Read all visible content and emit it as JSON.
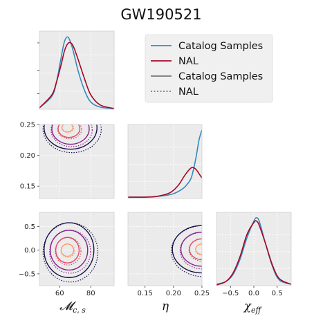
{
  "chart_data": {
    "type": "corner",
    "title": "GW190521",
    "colors": {
      "catalog": "#348abd",
      "nal": "#a60628",
      "legend_gray": "#777777",
      "contour": [
        "#1a0f4a",
        "#8a1f8c",
        "#de4968",
        "#fd9c6a"
      ]
    },
    "legend": {
      "entries": [
        "Catalog Samples",
        "NAL",
        "Catalog Samples",
        "NAL"
      ],
      "styles": [
        "solid-blue",
        "solid-red",
        "solid-gray",
        "dotted-gray"
      ],
      "placement": "top-right"
    },
    "params": [
      {
        "label": "𝓜c,s",
        "label_main": "𝓜",
        "label_sub": "c, s",
        "range": [
          47,
          95
        ],
        "ticks": [
          60,
          80
        ]
      },
      {
        "label": "η",
        "label_main": "η",
        "label_sub": "",
        "range": [
          0.12,
          0.25
        ],
        "ticks": [
          0.15,
          0.2,
          0.25
        ],
        "tick_labels": [
          "0.15",
          "0.20",
          "0.25"
        ]
      },
      {
        "label": "χeff",
        "label_main": "χ",
        "label_sub": "eff",
        "range": [
          -0.8,
          0.8
        ],
        "ticks": [
          -0.5,
          0.0,
          0.5
        ],
        "tick_labels": [
          "−0.5",
          "0.0",
          "0.5"
        ]
      }
    ],
    "y_axes": {
      "eta_row": {
        "ticks": [
          0.15,
          0.2,
          0.25
        ],
        "tick_labels": [
          "0.15",
          "0.20",
          "0.25"
        ]
      },
      "chi_row": {
        "ticks": [
          -0.5,
          0.0,
          0.5
        ],
        "tick_labels": [
          "−0.5",
          "0.0",
          "0.5"
        ]
      }
    },
    "grid": true,
    "marginals": {
      "mc": {
        "x": [
          47,
          55,
          58,
          61,
          63,
          65,
          67,
          69,
          72,
          76,
          80,
          86,
          95
        ],
        "catalog": [
          0.02,
          0.18,
          0.38,
          0.72,
          0.93,
          1.0,
          0.93,
          0.78,
          0.52,
          0.26,
          0.1,
          0.03,
          0.01
        ],
        "nal": [
          0.02,
          0.2,
          0.38,
          0.62,
          0.8,
          0.9,
          0.92,
          0.86,
          0.68,
          0.42,
          0.2,
          0.06,
          0.01
        ]
      },
      "eta": {
        "x": [
          0.12,
          0.15,
          0.17,
          0.19,
          0.2,
          0.21,
          0.22,
          0.23,
          0.235,
          0.24,
          0.245,
          0.25
        ],
        "catalog": [
          0.02,
          0.02,
          0.03,
          0.05,
          0.07,
          0.11,
          0.17,
          0.28,
          0.42,
          0.62,
          0.86,
          1.0
        ],
        "nal": [
          0.02,
          0.02,
          0.03,
          0.07,
          0.12,
          0.21,
          0.34,
          0.44,
          0.45,
          0.42,
          0.36,
          0.3
        ]
      },
      "chi": {
        "x": [
          -0.8,
          -0.6,
          -0.45,
          -0.3,
          -0.15,
          0.0,
          0.06,
          0.12,
          0.25,
          0.4,
          0.55,
          0.8
        ],
        "catalog": [
          0.02,
          0.06,
          0.16,
          0.38,
          0.7,
          0.95,
          1.0,
          0.94,
          0.62,
          0.28,
          0.08,
          0.02
        ],
        "nal": [
          0.01,
          0.06,
          0.18,
          0.42,
          0.75,
          0.93,
          0.95,
          0.88,
          0.62,
          0.3,
          0.1,
          0.02
        ]
      }
    },
    "contours_2d": {
      "mc_eta": [
        {
          "cx": 67,
          "cy": 0.245,
          "rx": 17,
          "ry": 0.035
        },
        {
          "cx": 67,
          "cy": 0.243,
          "rx": 12,
          "ry": 0.025
        },
        {
          "cx": 66,
          "cy": 0.243,
          "rx": 7,
          "ry": 0.014
        },
        {
          "cx": 65,
          "cy": 0.245,
          "rx": 3.5,
          "ry": 0.007
        }
      ],
      "mc_chi": [
        {
          "cx": 66,
          "cy": 0.0,
          "rx": 16,
          "ry": 0.58
        },
        {
          "cx": 66,
          "cy": 0.0,
          "rx": 12,
          "ry": 0.42
        },
        {
          "cx": 65,
          "cy": 0.0,
          "rx": 7.5,
          "ry": 0.27
        },
        {
          "cx": 65,
          "cy": 0.0,
          "rx": 4,
          "ry": 0.13
        }
      ],
      "eta_chi": [
        {
          "cx": 0.25,
          "cy": 0.02,
          "rx": 0.052,
          "ry": 0.5
        },
        {
          "cx": 0.25,
          "cy": 0.02,
          "rx": 0.037,
          "ry": 0.36
        },
        {
          "cx": 0.25,
          "cy": 0.02,
          "rx": 0.022,
          "ry": 0.22
        },
        {
          "cx": 0.25,
          "cy": 0.02,
          "rx": 0.011,
          "ry": 0.11
        }
      ]
    }
  }
}
